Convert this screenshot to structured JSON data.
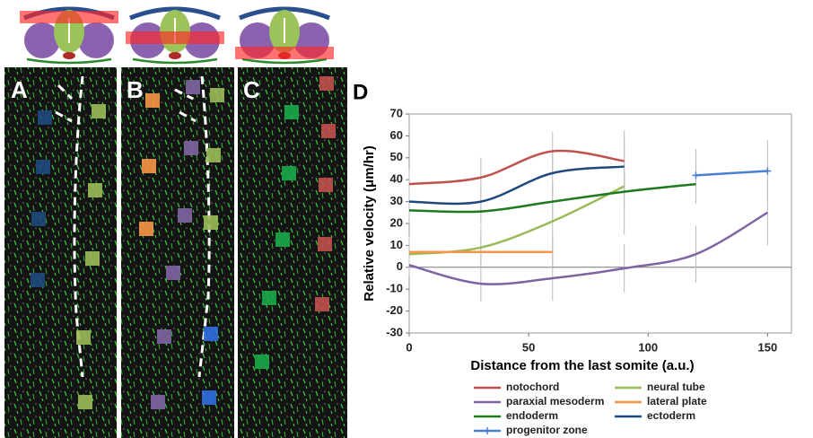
{
  "panels": {
    "a": "A",
    "b": "B",
    "c": "C",
    "d": "D"
  },
  "chart_data": {
    "type": "line",
    "x_label": "Distance from the last  somite (a.u.)",
    "y_label": "Relative velocity (μm/hr)",
    "x": [
      0,
      30,
      60,
      90,
      120,
      150
    ],
    "xlim": [
      0,
      160
    ],
    "xticks": [
      0,
      50,
      100,
      150
    ],
    "ylim": [
      -30,
      70
    ],
    "yticks": [
      -30,
      -20,
      -10,
      0,
      10,
      20,
      30,
      40,
      50,
      60,
      70
    ],
    "series": [
      {
        "name": "notochord",
        "color": "#c0504d",
        "values": [
          38,
          41,
          53,
          48.5,
          null,
          null
        ],
        "errors": [
          7,
          9,
          9,
          14,
          null,
          null
        ]
      },
      {
        "name": "neural tube",
        "color": "#9bbb59",
        "values": [
          6,
          9,
          21,
          37,
          null,
          null
        ],
        "errors": [
          8,
          10,
          17,
          22,
          null,
          null
        ]
      },
      {
        "name": "paraxial mesoderm",
        "color": "#8064a2",
        "values": [
          1,
          -7.5,
          -5,
          -0.5,
          6,
          25
        ],
        "errors": [
          5,
          8,
          10,
          11,
          13,
          15
        ]
      },
      {
        "name": "lateral plate",
        "color": "#f79646",
        "values": [
          7,
          7,
          7,
          null,
          null,
          null
        ],
        "errors": [
          4,
          6,
          8,
          null,
          null,
          null
        ]
      },
      {
        "name": "endoderm",
        "color": "#1e7a1e",
        "values": [
          26,
          25.5,
          30,
          34.5,
          38,
          null
        ],
        "errors": [
          6,
          6,
          8,
          9,
          9,
          null
        ]
      },
      {
        "name": "ectoderm",
        "color": "#1f497d",
        "values": [
          30,
          30,
          43,
          46,
          null,
          null
        ],
        "errors": [
          6,
          7,
          10,
          15,
          null,
          null
        ]
      },
      {
        "name": "progenitor zone",
        "color": "#4a7fd4",
        "marker": true,
        "values": [
          null,
          null,
          null,
          null,
          42,
          44
        ],
        "errors": [
          null,
          null,
          null,
          null,
          12,
          14
        ]
      }
    ]
  }
}
